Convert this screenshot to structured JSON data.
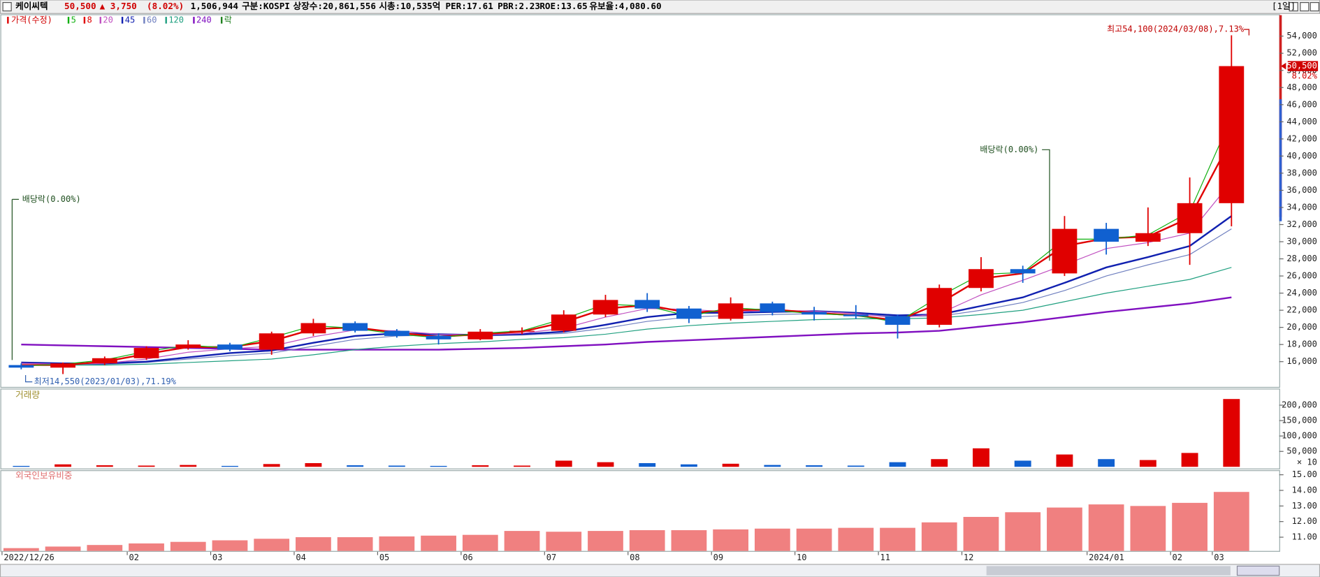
{
  "header": {
    "name": "케이씨텍",
    "price": "50,500",
    "change": "▲ 3,750",
    "change_pct": "(8.02%)",
    "volume": "1,506,944",
    "info": [
      "구분:KOSPI",
      "상장수:20,861,556",
      "시총:10,535억",
      "PER:17.61",
      "PBR:2.23",
      "ROE:13.65",
      "유보율:4,080.60"
    ],
    "period": "[1일]"
  },
  "chart_data": [
    {
      "type": "candlestick",
      "legend_title": "가격(수정)",
      "legend_extra": "락",
      "categories": [
        "2022/12/26",
        null,
        null,
        "02",
        null,
        "03",
        null,
        "04",
        null,
        "05",
        null,
        "06",
        null,
        "07",
        null,
        "08",
        null,
        "09",
        null,
        "10",
        null,
        "11",
        null,
        "12",
        null,
        null,
        "2024/01",
        null,
        "02",
        "03"
      ],
      "open": [
        15600,
        15300,
        15800,
        16400,
        17600,
        18000,
        17400,
        19300,
        20500,
        19600,
        19000,
        18600,
        19500,
        19600,
        21500,
        23200,
        22200,
        21000,
        22800,
        21800,
        21500,
        21300,
        20300,
        24600,
        26800,
        26300,
        31500,
        30000,
        31000,
        34500
      ],
      "high": [
        15800,
        15900,
        16600,
        17800,
        18500,
        18200,
        19500,
        21000,
        20700,
        19800,
        19300,
        19800,
        20000,
        22000,
        23800,
        24000,
        22500,
        23500,
        23000,
        22400,
        22600,
        21500,
        25000,
        28200,
        27200,
        33000,
        32200,
        34000,
        37500,
        54100
      ],
      "low": [
        15100,
        14550,
        15600,
        16200,
        17400,
        17200,
        16800,
        19000,
        19400,
        18800,
        18000,
        18500,
        19200,
        19400,
        21200,
        21800,
        20500,
        20800,
        21400,
        20800,
        21000,
        18700,
        20000,
        24200,
        25200,
        26000,
        28500,
        29500,
        27300,
        31800
      ],
      "close": [
        15300,
        15800,
        16400,
        17600,
        18000,
        17400,
        19300,
        20500,
        19600,
        19000,
        18600,
        19500,
        19600,
        21500,
        23200,
        22200,
        21000,
        22800,
        21800,
        21500,
        21300,
        20300,
        24600,
        26800,
        26300,
        31500,
        30000,
        31000,
        34500,
        50500
      ],
      "up_color": "#e00000",
      "down_color": "#1060d0",
      "series": [
        {
          "name": "5",
          "color": "#10b010",
          "width": 1,
          "values": [
            15500,
            15700,
            16200,
            17200,
            17900,
            17600,
            18800,
            20200,
            19900,
            19200,
            18800,
            19300,
            19600,
            21000,
            22700,
            22500,
            21300,
            22300,
            22000,
            21600,
            21400,
            20600,
            23600,
            26200,
            26400,
            30300,
            30300,
            30800,
            33500,
            44500
          ]
        },
        {
          "name": "8",
          "color": "#e00000",
          "width": 2,
          "values": [
            15600,
            15600,
            16000,
            16900,
            17700,
            17700,
            18400,
            19800,
            20000,
            19400,
            18900,
            19200,
            19500,
            20600,
            22200,
            22600,
            21700,
            22000,
            22100,
            21700,
            21400,
            20800,
            22800,
            25700,
            26300,
            29500,
            30400,
            30600,
            32800,
            42000
          ]
        },
        {
          "name": "20",
          "color": "#c050c0",
          "width": 1,
          "values": [
            15800,
            15700,
            15800,
            16300,
            17100,
            17500,
            17800,
            18900,
            19700,
            19600,
            19200,
            19100,
            19300,
            19900,
            21200,
            22200,
            22100,
            21800,
            22000,
            21900,
            21600,
            21100,
            21600,
            23800,
            25500,
            27300,
            29200,
            29900,
            31000,
            37000
          ]
        },
        {
          "name": "45",
          "color": "#1020b0",
          "width": 2,
          "values": [
            15900,
            15800,
            15800,
            16000,
            16500,
            17000,
            17300,
            18200,
            19000,
            19300,
            19200,
            19100,
            19200,
            19500,
            20300,
            21200,
            21700,
            21700,
            21800,
            21900,
            21700,
            21400,
            21500,
            22500,
            23500,
            25200,
            27000,
            28200,
            29500,
            33000
          ]
        },
        {
          "name": "60",
          "color": "#7080c0",
          "width": 1,
          "values": [
            15800,
            15700,
            15700,
            15900,
            16300,
            16700,
            17000,
            17800,
            18600,
            19000,
            19100,
            19000,
            19100,
            19300,
            19900,
            20700,
            21200,
            21400,
            21500,
            21600,
            21500,
            21300,
            21300,
            22000,
            22900,
            24300,
            26000,
            27300,
            28500,
            31500
          ]
        },
        {
          "name": "120",
          "color": "#20a080",
          "width": 1,
          "values": [
            15600,
            15600,
            15600,
            15700,
            15900,
            16100,
            16300,
            16800,
            17400,
            17800,
            18100,
            18300,
            18600,
            18800,
            19200,
            19800,
            20200,
            20500,
            20700,
            20900,
            21000,
            21000,
            21100,
            21500,
            22000,
            23000,
            24000,
            24800,
            25600,
            27000
          ]
        },
        {
          "name": "240",
          "color": "#8010c0",
          "width": 2,
          "values": [
            18000,
            17900,
            17800,
            17700,
            17600,
            17500,
            17400,
            17400,
            17400,
            17400,
            17400,
            17500,
            17600,
            17800,
            18000,
            18300,
            18500,
            18700,
            18900,
            19100,
            19300,
            19400,
            19600,
            20100,
            20600,
            21200,
            21800,
            22300,
            22800,
            23500
          ]
        }
      ],
      "ylim": [
        13050,
        56450
      ],
      "yticks": [
        {
          "value": 16000,
          "label": "16,000"
        },
        {
          "value": 18000,
          "label": "18,000"
        },
        {
          "value": 20000,
          "label": "20,000"
        },
        {
          "value": 22000,
          "label": "22,000"
        },
        {
          "value": 24000,
          "label": "24,000"
        },
        {
          "value": 26000,
          "label": "26,000"
        },
        {
          "value": 28000,
          "label": "28,000"
        },
        {
          "value": 30000,
          "label": "30,000"
        },
        {
          "value": 32000,
          "label": "32,000"
        },
        {
          "value": 34000,
          "label": "34,000"
        },
        {
          "value": 36000,
          "label": "36,000"
        },
        {
          "value": 38000,
          "label": "38,000"
        },
        {
          "value": 40000,
          "label": "40,000"
        },
        {
          "value": 42000,
          "label": "42,000"
        },
        {
          "value": 44000,
          "label": "44,000"
        },
        {
          "value": 46000,
          "label": "46,000"
        },
        {
          "value": 48000,
          "label": "48,000"
        },
        {
          "value": 50000,
          "label": "50,000"
        },
        {
          "value": 52000,
          "label": "52,000"
        },
        {
          "value": 54000,
          "label": "54,000"
        }
      ],
      "annotations": [
        "최고54,100(2024/03/08),7.13%",
        "최저14,550(2023/01/03),71.19%",
        "배당락(0.00%)",
        "배당락(0.00%)"
      ],
      "last_price_label": "50,500",
      "last_change_label": "8.02%"
    },
    {
      "type": "bar",
      "title": "거래량",
      "unit_note": "× 10",
      "values": [
        3000,
        8000,
        5000,
        4000,
        6000,
        3000,
        9000,
        12000,
        5000,
        4000,
        3000,
        5000,
        4000,
        20000,
        15000,
        12000,
        8000,
        10000,
        6000,
        5000,
        4000,
        15000,
        25000,
        60000,
        20000,
        40000,
        25000,
        22000,
        45000,
        220000
      ],
      "ylim": [
        0,
        232000
      ],
      "yticks": [
        {
          "value": 50000,
          "label": "50,000"
        },
        {
          "value": 100000,
          "label": "100,000"
        },
        {
          "value": 150000,
          "label": "150,000"
        },
        {
          "value": 200000,
          "label": "200,000"
        }
      ]
    },
    {
      "type": "bar",
      "title": "외국인보유비중",
      "color": "#f08080",
      "values": [
        10.3,
        10.4,
        10.5,
        10.6,
        10.7,
        10.8,
        10.9,
        11.0,
        11.0,
        11.05,
        11.1,
        11.15,
        11.4,
        11.35,
        11.4,
        11.45,
        11.45,
        11.5,
        11.55,
        11.55,
        11.6,
        11.6,
        11.95,
        12.3,
        12.6,
        12.9,
        13.1,
        13.0,
        13.2,
        13.9
      ],
      "ylim": [
        10.12,
        15.24
      ],
      "yticks": [
        {
          "value": 11,
          "label": "11.00"
        },
        {
          "value": 12,
          "label": "12.00"
        },
        {
          "value": 13,
          "label": "13.00"
        },
        {
          "value": 14,
          "label": "14.00"
        },
        {
          "value": 15,
          "label": "15.00"
        }
      ]
    }
  ]
}
